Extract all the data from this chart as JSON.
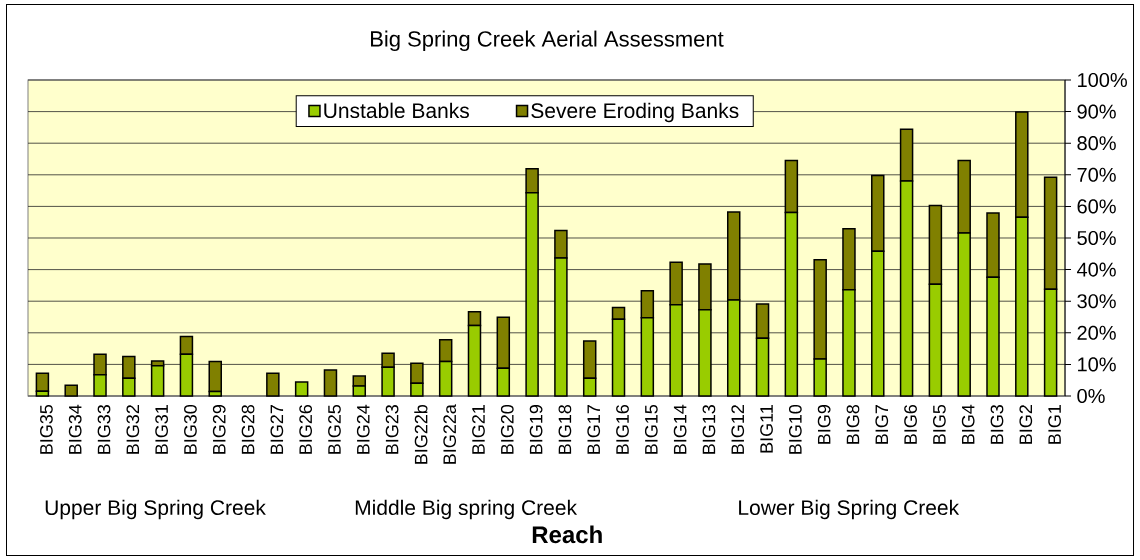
{
  "chart_data": {
    "type": "bar",
    "title": "Big Spring Creek Aerial Assessment",
    "xlabel": "Reach",
    "categories": [
      "BIG35",
      "BIG34",
      "BIG33",
      "BIG32",
      "BIG31",
      "BIG30",
      "BIG29",
      "BIG28",
      "BIG27",
      "BIG26",
      "BIG25",
      "BIG24",
      "BIG23",
      "BIG22b",
      "BIG22a",
      "BIG21",
      "BIG20",
      "BIG19",
      "BIG18",
      "BIG17",
      "BIG16",
      "BIG15",
      "BIG14",
      "BIG13",
      "BIG12",
      "BIG11",
      "BIG10",
      "BIG9",
      "BIG8",
      "BIG7",
      "BIG6",
      "BIG5",
      "BIG4",
      "BIG3",
      "BIG2",
      "BIG1"
    ],
    "series": [
      {
        "name": "Unstable Banks",
        "color": "#99cc00",
        "values": [
          1.5,
          0,
          6.7,
          5.6,
          9.6,
          13.2,
          1.4,
          0,
          0,
          4.4,
          0,
          3.2,
          9.1,
          4.0,
          10.9,
          22.3,
          8.8,
          64.3,
          43.7,
          5.6,
          24.3,
          24.8,
          28.9,
          27.3,
          30.4,
          18.3,
          58.1,
          11.7,
          33.6,
          45.8,
          68.0,
          35.4,
          51.6,
          37.6,
          56.6,
          33.8
        ]
      },
      {
        "name": "Severe Eroding Banks",
        "color": "#808000",
        "values": [
          5.7,
          3.4,
          6.5,
          6.9,
          1.5,
          5.6,
          9.5,
          0,
          7.2,
          0,
          8.2,
          3.1,
          4.4,
          6.4,
          6.9,
          4.4,
          16.1,
          7.6,
          8.7,
          11.8,
          3.7,
          8.5,
          13.4,
          14.5,
          27.8,
          10.8,
          16.4,
          31.4,
          19.3,
          24.0,
          16.4,
          24.9,
          22.9,
          20.3,
          33.3,
          35.4
        ]
      }
    ],
    "stacked": true,
    "ylim": [
      0,
      100
    ],
    "yticks": [
      {
        "value": 0,
        "label": "0%"
      },
      {
        "value": 10,
        "label": "10%"
      },
      {
        "value": 20,
        "label": "20%"
      },
      {
        "value": 30,
        "label": "30%"
      },
      {
        "value": 40,
        "label": "40%"
      },
      {
        "value": 50,
        "label": "50%"
      },
      {
        "value": 60,
        "label": "60%"
      },
      {
        "value": 70,
        "label": "70%"
      },
      {
        "value": 80,
        "label": "80%"
      },
      {
        "value": 90,
        "label": "90%"
      },
      {
        "value": 100,
        "label": "100%"
      }
    ],
    "grid": "y",
    "legend": "top",
    "annotations": [
      "Upper Big Spring Creek",
      "Middle Big spring Creek",
      "Lower Big Spring Creek"
    ]
  }
}
